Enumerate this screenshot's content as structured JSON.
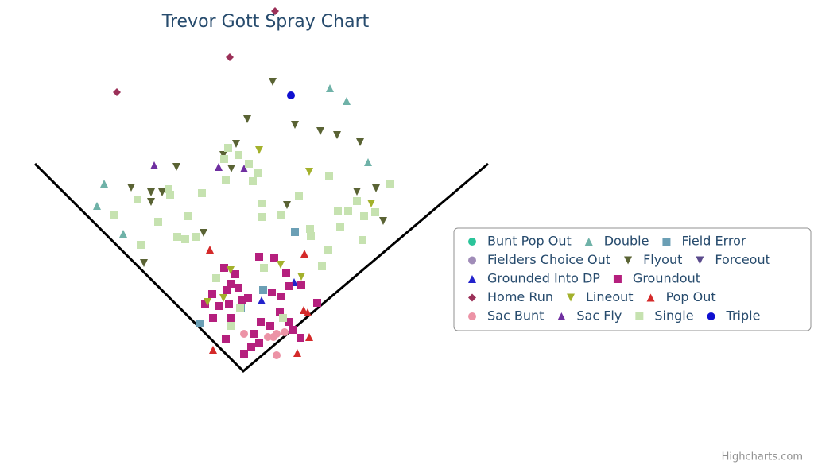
{
  "chart_data": {
    "type": "scatter",
    "title": "Trevor Gott Spray Chart",
    "credit": "Highcharts.com",
    "xlim": [
      -306,
      718
    ],
    "ylim": [
      -118,
      467
    ],
    "series": [
      {
        "name": "Bunt Pop Out",
        "color": "#2bc49a",
        "symbol": "circle",
        "x": [],
        "y": []
      },
      {
        "name": "Double",
        "color": "#6fb2a8",
        "symbol": "triangle",
        "x": [
          109,
          130,
          157,
          -175,
          -184,
          -151
        ],
        "y": [
          356,
          340,
          263,
          236,
          208,
          173
        ]
      },
      {
        "name": "Field Error",
        "color": "#6b9fb5",
        "symbol": "square",
        "x": [
          65,
          25,
          -55,
          -3
        ],
        "y": [
          175,
          102,
          60,
          79
        ]
      },
      {
        "name": "Fielders Choice Out",
        "color": "#a08cb8",
        "symbol": "circle",
        "x": [],
        "y": []
      },
      {
        "name": "Flyout",
        "color": "#5a6334",
        "symbol": "triangle-down",
        "x": [
          37,
          5,
          65,
          97,
          118,
          147,
          -9,
          -25,
          -15,
          -84,
          -141,
          -116,
          -102,
          -116,
          55,
          143,
          167,
          176,
          -50,
          -125
        ],
        "y": [
          364,
          317,
          310,
          302,
          297,
          288,
          286,
          272,
          255,
          257,
          231,
          225,
          225,
          213,
          209,
          226,
          230,
          189,
          174,
          136
        ]
      },
      {
        "name": "Forceout",
        "color": "#5a4a8c",
        "symbol": "triangle-down",
        "x": [],
        "y": []
      },
      {
        "name": "Grounded Into DP",
        "color": "#2222cc",
        "symbol": "triangle",
        "x": [
          23,
          64
        ],
        "y": [
          89,
          112
        ]
      },
      {
        "name": "Groundout",
        "color": "#b5207e",
        "symbol": "square",
        "x": [
          -24,
          -10,
          20,
          39,
          54,
          73,
          -16,
          -6,
          -39,
          -21,
          36,
          47,
          -1,
          -31,
          -48,
          6,
          57,
          22,
          14,
          10,
          1,
          20,
          34,
          46,
          93,
          62,
          72,
          -22,
          -38,
          -15,
          -18,
          57
        ],
        "y": [
          130,
          122,
          144,
          142,
          124,
          109,
          110,
          105,
          97,
          102,
          99,
          94,
          89,
          82,
          84,
          92,
          62,
          62,
          47,
          30,
          22,
          35,
          57,
          75,
          86,
          52,
          42,
          41,
          67,
          67,
          85,
          107
        ]
      },
      {
        "name": "Home Run",
        "color": "#9b3058",
        "symbol": "diamond",
        "x": [
          40,
          -17,
          -159
        ],
        "y": [
          453,
          395,
          351
        ]
      },
      {
        "name": "Lineout",
        "color": "#a3b12c",
        "symbol": "triangle-down",
        "x": [
          20,
          83,
          161,
          47,
          -16,
          73,
          -45,
          -25
        ],
        "y": [
          278,
          251,
          211,
          134,
          127,
          119,
          87,
          92
        ]
      },
      {
        "name": "Pop Out",
        "color": "#d42a2a",
        "symbol": "triangle",
        "x": [
          -42,
          77,
          76,
          83,
          68,
          -38,
          81
        ],
        "y": [
          153,
          148,
          77,
          43,
          23,
          27,
          74
        ]
      },
      {
        "name": "Sac Bunt",
        "color": "#ec93a6",
        "symbol": "circle",
        "x": [
          1,
          31,
          42,
          52,
          42,
          38
        ],
        "y": [
          47,
          43,
          47,
          49,
          20,
          43
        ]
      },
      {
        "name": "Sac Fly",
        "color": "#6f2fa0",
        "symbol": "triangle",
        "x": [
          -112,
          -31,
          1
        ],
        "y": [
          259,
          257,
          255
        ]
      },
      {
        "name": "Single",
        "color": "#c6e2b0",
        "symbol": "square",
        "x": [
          -19,
          -6,
          -24,
          7,
          19,
          -22,
          12,
          108,
          185,
          -94,
          -92,
          -52,
          -133,
          70,
          24,
          143,
          119,
          132,
          152,
          166,
          -162,
          -69,
          -107,
          47,
          24,
          84,
          85,
          122,
          150,
          -83,
          -73,
          -60,
          -129,
          99,
          107,
          26,
          -34,
          -4,
          -16,
          50
        ],
        "y": [
          281,
          272,
          267,
          261,
          249,
          241,
          239,
          246,
          236,
          229,
          222,
          224,
          216,
          221,
          211,
          214,
          202,
          202,
          195,
          200,
          197,
          195,
          188,
          197,
          194,
          179,
          170,
          182,
          165,
          169,
          166,
          169,
          159,
          132,
          152,
          130,
          117,
          80,
          57,
          67
        ]
      },
      {
        "name": "Triple",
        "color": "#1010d0",
        "symbol": "circle",
        "x": [
          60
        ],
        "y": [
          347
        ]
      }
    ]
  }
}
